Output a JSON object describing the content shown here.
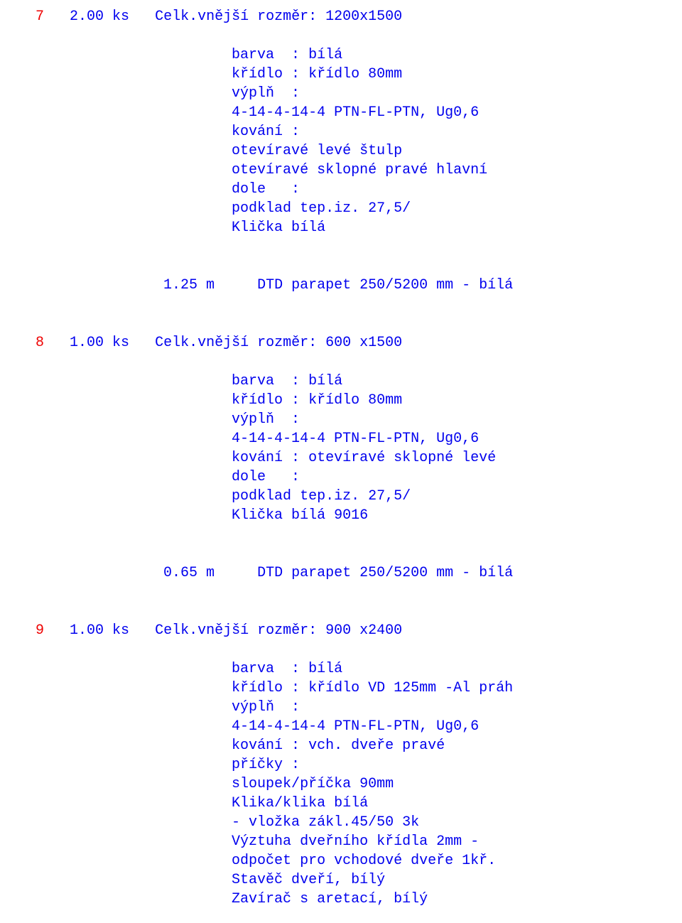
{
  "colors": {
    "red": "#ee0000",
    "blue": "#0000ee",
    "background": "#ffffff"
  },
  "typography": {
    "font_family": "Courier New",
    "font_size_pt": 16,
    "weight": "normal"
  },
  "items": [
    {
      "idx": "7",
      "qty": "2.00 ks",
      "title": "Celk.vnější rozměr: 1200x1500",
      "specs": [
        "barva  : bílá",
        "křídlo : křídlo 80mm",
        "výplň  :",
        "4-14-4-14-4 PTN-FL-PTN, Ug0,6",
        "kování :",
        "otevíravé levé štulp",
        "otevíravé sklopné pravé hlavní",
        "dole   :",
        "podklad tep.iz. 27,5/",
        "Klička bílá"
      ],
      "measure": {
        "m": "1.25 m",
        "desc": "DTD parapet 250/5200 mm - bílá"
      }
    },
    {
      "idx": "8",
      "qty": "1.00 ks",
      "title": "Celk.vnější rozměr: 600 x1500",
      "specs": [
        "barva  : bílá",
        "křídlo : křídlo 80mm",
        "výplň  :",
        "4-14-4-14-4 PTN-FL-PTN, Ug0,6",
        "kování : otevíravé sklopné levé",
        "dole   :",
        "podklad tep.iz. 27,5/",
        "Klička bílá 9016"
      ],
      "measure": {
        "m": "0.65 m",
        "desc": "DTD parapet 250/5200 mm - bílá"
      }
    },
    {
      "idx": "9",
      "qty": "1.00 ks",
      "title": "Celk.vnější rozměr: 900 x2400",
      "specs": [
        "barva  : bílá",
        "křídlo : křídlo VD 125mm -Al práh",
        "výplň  :",
        "4-14-4-14-4 PTN-FL-PTN, Ug0,6",
        "kování : vch. dveře pravé",
        "příčky :",
        "sloupek/příčka 90mm",
        "Klika/klika bílá",
        "- vložka zákl.45/50 3k",
        "Výztuha dveřního křídla 2mm -",
        "odpočet pro vchodové dveře 1kř.",
        "Stavěč dveří, bílý",
        "Zavírač s aretací, bílý"
      ],
      "measure": null
    }
  ]
}
